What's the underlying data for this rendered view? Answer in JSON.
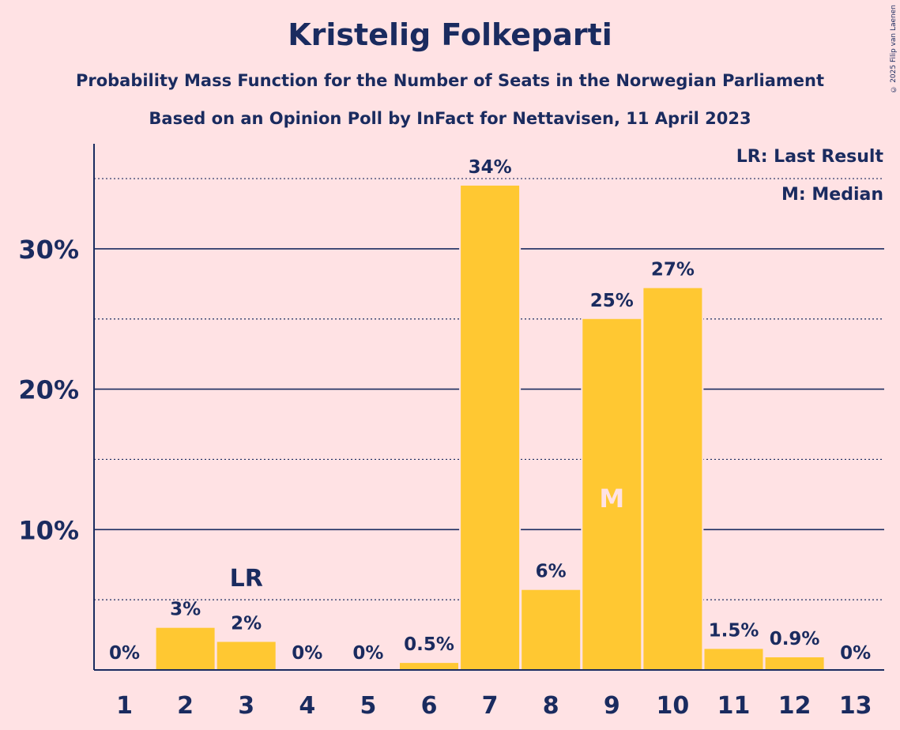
{
  "header": {
    "title": "Kristelig Folkeparti",
    "subtitle_1": "Probability Mass Function for the Number of Seats in the Norwegian Parliament",
    "subtitle_2": "Based on an Opinion Poll by InFact for Nettavisen, 11 April 2023",
    "copyright": "© 2025 Filip van Laenen"
  },
  "legend": {
    "last_result": "LR: Last Result",
    "median": "M: Median"
  },
  "colors": {
    "background": "#ffe2e4",
    "bar": "#ffc832",
    "text": "#1a2b5f",
    "median_marker": "#ffe2e4"
  },
  "chart_data": {
    "type": "bar",
    "categories": [
      "1",
      "2",
      "3",
      "4",
      "5",
      "6",
      "7",
      "8",
      "9",
      "10",
      "11",
      "12",
      "13"
    ],
    "values": [
      0,
      3,
      2,
      0,
      0,
      0.5,
      34.5,
      5.7,
      25,
      27.2,
      1.5,
      0.9,
      0
    ],
    "data_labels": [
      "0%",
      "3%",
      "2%",
      "0%",
      "0%",
      "0.5%",
      "34%",
      "6%",
      "25%",
      "27%",
      "1.5%",
      "0.9%",
      "0%"
    ],
    "y_ticks": [
      10,
      20,
      30
    ],
    "y_tick_labels": [
      "10%",
      "20%",
      "30%"
    ],
    "ylim": [
      0,
      37.5
    ],
    "grid": "solid at 10% steps, dotted at 5% steps",
    "last_result": {
      "category": "3",
      "label": "LR"
    },
    "median": {
      "category": "9",
      "label": "M"
    },
    "legend_position": "top-right"
  }
}
